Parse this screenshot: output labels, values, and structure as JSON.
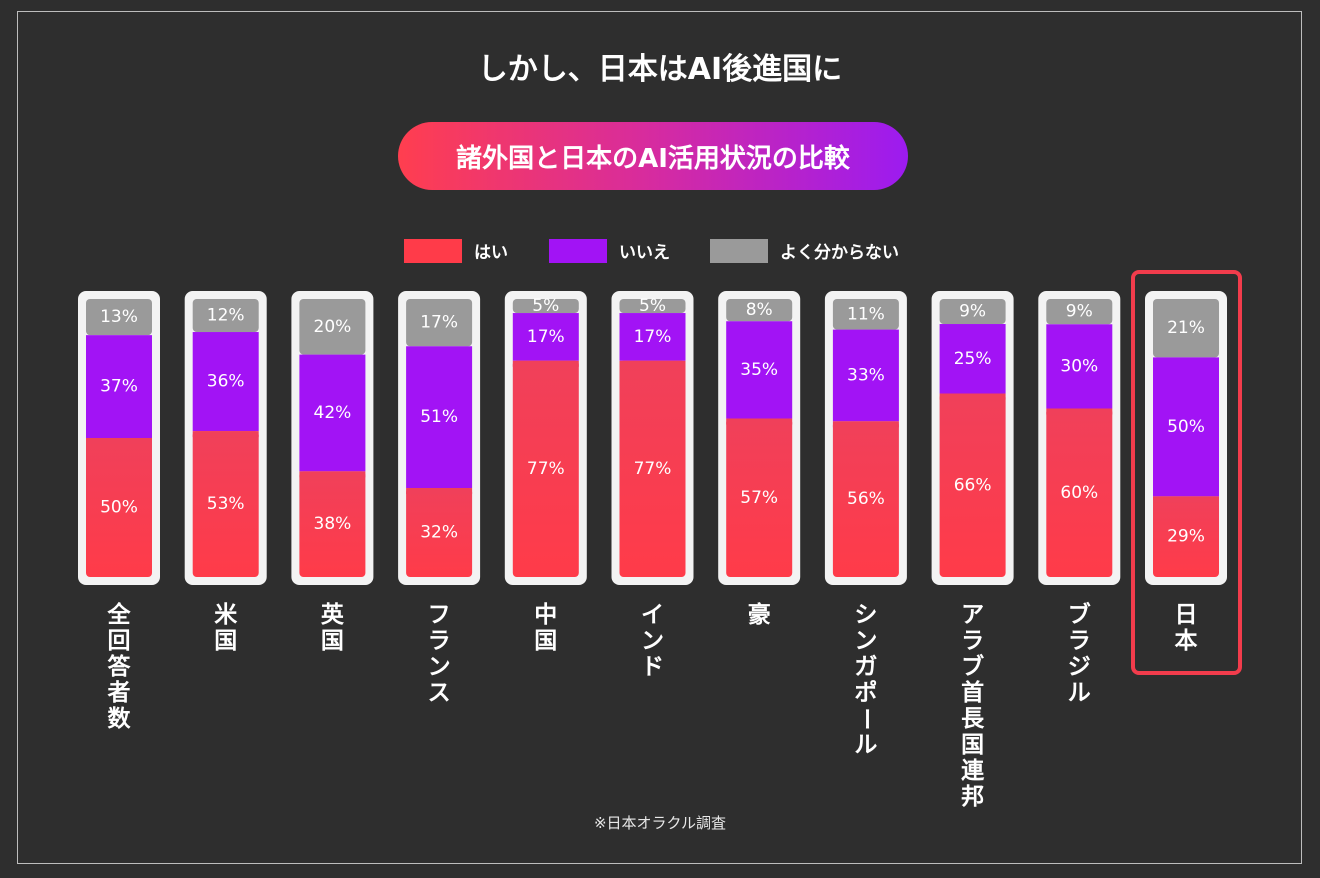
{
  "title": "しかし、日本はAI後進国に",
  "subtitle": "諸外国と日本のAI活用状況の比較",
  "footnote": "※日本オラクル調査",
  "colors": {
    "yes": "#ff3b49",
    "no": "#a213f5",
    "unknown": "#9a9a9a",
    "highlight": "#f23c4c"
  },
  "legend": [
    {
      "label": "はい",
      "color_key": "yes"
    },
    {
      "label": "いいえ",
      "color_key": "no"
    },
    {
      "label": "よく分からない",
      "color_key": "unknown"
    }
  ],
  "chart_data": {
    "type": "bar",
    "stacked": true,
    "percent": true,
    "title": "諸外国と日本のAI活用状況の比較",
    "categories": [
      "全回答者数",
      "米国",
      "英国",
      "フランス",
      "中国",
      "インド",
      "豪",
      "シンガポール",
      "アラブ首長国連邦",
      "ブラジル",
      "日本"
    ],
    "series": [
      {
        "name": "はい",
        "color_key": "yes",
        "values": [
          50,
          53,
          38,
          32,
          77,
          77,
          57,
          56,
          66,
          60,
          29
        ]
      },
      {
        "name": "いいえ",
        "color_key": "no",
        "values": [
          37,
          36,
          42,
          51,
          17,
          17,
          35,
          33,
          25,
          30,
          50
        ]
      },
      {
        "name": "よく分からない",
        "color_key": "unknown",
        "values": [
          13,
          12,
          20,
          17,
          5,
          5,
          8,
          11,
          9,
          9,
          21
        ]
      }
    ],
    "highlight_category": "日本",
    "ylim": [
      0,
      100
    ],
    "legend_position": "top"
  }
}
